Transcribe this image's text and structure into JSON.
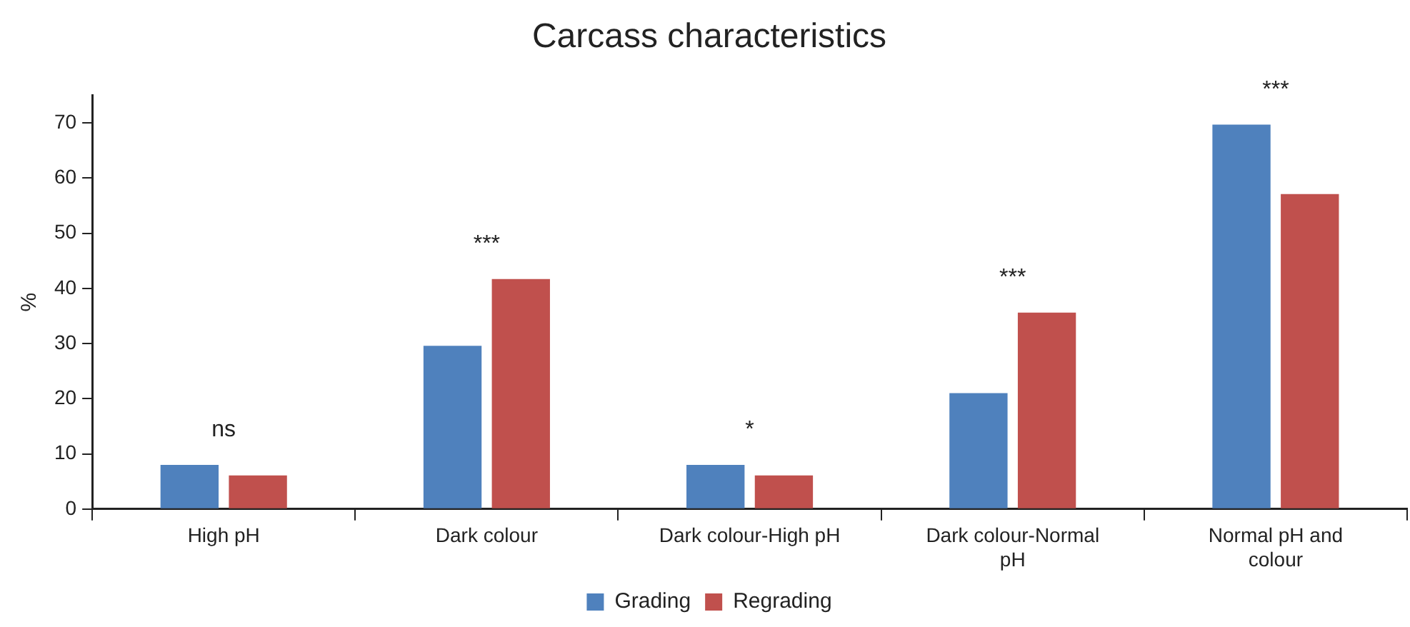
{
  "chart_data": {
    "type": "bar",
    "title": "Carcass characteristics",
    "ylabel": "%",
    "categories": [
      "High pH",
      "Dark colour",
      "Dark colour-High pH",
      "Dark colour-Normal pH",
      "Normal pH and colour"
    ],
    "series": [
      {
        "name": "Grading",
        "color": "#4f81bd",
        "values": [
          8.0,
          29.6,
          8.0,
          21.0,
          69.7
        ]
      },
      {
        "name": "Regrading",
        "color": "#c0504d",
        "values": [
          6.1,
          41.7,
          6.1,
          35.6,
          57.1
        ]
      }
    ],
    "ylim": [
      0,
      75
    ],
    "yticks": [
      0,
      10,
      20,
      30,
      40,
      50,
      60,
      70
    ],
    "grid": false,
    "legend": "bottom",
    "annotations": [
      "ns",
      "***",
      "*",
      "***",
      "***"
    ]
  }
}
